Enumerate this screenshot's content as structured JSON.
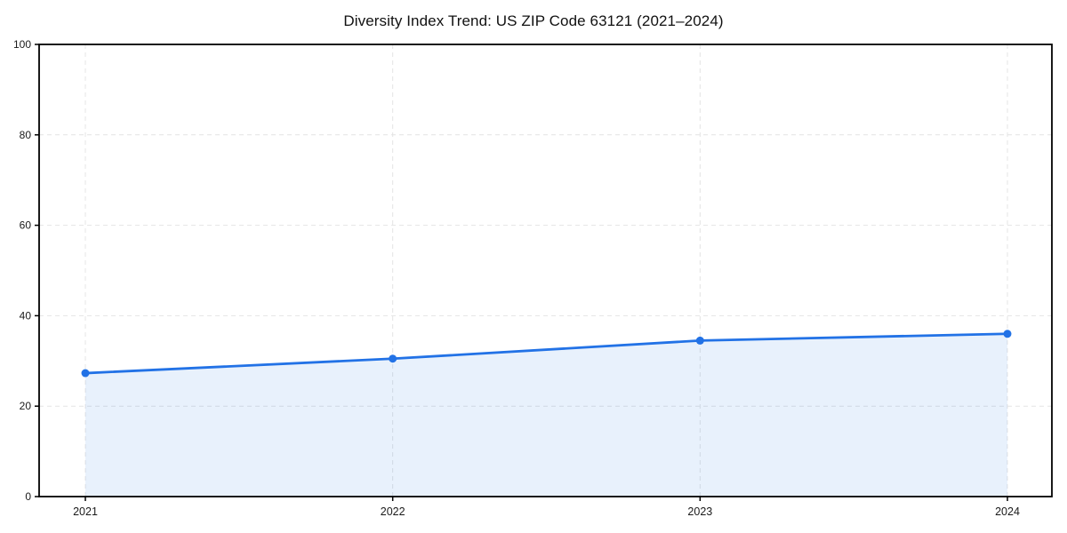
{
  "chart_data": {
    "type": "line",
    "title": "Diversity Index Trend: US ZIP Code 63121 (2021–2024)",
    "x": [
      2021,
      2022,
      2023,
      2024
    ],
    "x_tick_labels": [
      "2021",
      "2022",
      "2023",
      "2024"
    ],
    "series": [
      {
        "name": "Diversity Index",
        "values": [
          27.3,
          30.5,
          34.5,
          36.0
        ]
      }
    ],
    "xlabel": "",
    "ylabel": "",
    "ylim": [
      0,
      100
    ],
    "yticks": [
      0,
      20,
      40,
      60,
      80,
      100
    ],
    "grid": true,
    "grid_style": "dashed",
    "legend": "none",
    "colors": {
      "line": "#2272e6",
      "marker": "#2272e6",
      "area_fill": "#2272e6",
      "area_fill_opacity": 0.1,
      "grid": "#e4e4e4",
      "axis": "#000000",
      "tick_text": "#1a1a1a",
      "background": "#ffffff"
    }
  }
}
